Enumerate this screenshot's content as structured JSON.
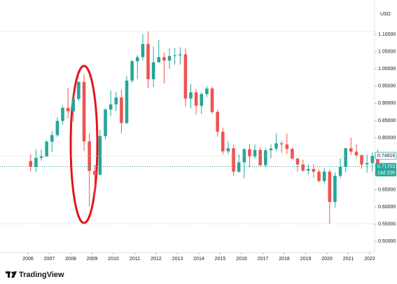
{
  "chart_data": {
    "type": "candlestick",
    "currency": "USD",
    "branding": "TradingView",
    "x": [
      2006.125,
      2006.375,
      2006.625,
      2006.875,
      2007.125,
      2007.375,
      2007.625,
      2007.875,
      2008.125,
      2008.375,
      2008.625,
      2008.875,
      2009.125,
      2009.375,
      2009.625,
      2009.875,
      2010.125,
      2010.375,
      2010.625,
      2010.875,
      2011.125,
      2011.375,
      2011.625,
      2011.875,
      2012.125,
      2012.375,
      2012.625,
      2012.875,
      2013.125,
      2013.375,
      2013.625,
      2013.875,
      2014.125,
      2014.375,
      2014.625,
      2014.875,
      2015.125,
      2015.375,
      2015.625,
      2015.875,
      2016.125,
      2016.375,
      2016.625,
      2016.875,
      2017.125,
      2017.375,
      2017.625,
      2017.875,
      2018.125,
      2018.375,
      2018.625,
      2018.875,
      2019.125,
      2019.375,
      2019.625,
      2019.875,
      2020.125,
      2020.375,
      2020.625,
      2020.875,
      2021.125,
      2021.375,
      2021.625,
      2021.875,
      2022.125,
      2022.375
    ],
    "open": [
      0.733,
      0.716,
      0.742,
      0.746,
      0.789,
      0.808,
      0.849,
      0.887,
      0.877,
      0.913,
      0.962,
      0.79,
      0.704,
      0.693,
      0.805,
      0.882,
      0.897,
      0.917,
      0.843,
      0.966,
      1.022,
      1.034,
      1.072,
      0.97,
      1.019,
      1.034,
      1.024,
      1.037,
      1.039,
      1.042,
      0.914,
      0.932,
      0.893,
      0.927,
      0.943,
      0.875,
      0.818,
      0.761,
      0.77,
      0.702,
      0.729,
      0.767,
      0.746,
      0.765,
      0.721,
      0.764,
      0.769,
      0.784,
      0.781,
      0.768,
      0.74,
      0.723,
      0.705,
      0.71,
      0.702,
      0.675,
      0.702,
      0.614,
      0.69,
      0.716,
      0.77,
      0.76,
      0.75,
      0.723,
      0.727,
      0.748
    ],
    "high": [
      0.752,
      0.767,
      0.766,
      0.793,
      0.819,
      0.86,
      0.893,
      0.944,
      0.93,
      0.965,
      0.984,
      0.814,
      0.722,
      0.823,
      0.886,
      0.937,
      0.933,
      0.939,
      0.979,
      1.026,
      1.04,
      1.101,
      1.108,
      1.064,
      1.084,
      1.047,
      1.06,
      1.061,
      1.062,
      1.06,
      0.956,
      0.941,
      0.932,
      0.95,
      0.948,
      0.882,
      0.83,
      0.79,
      0.78,
      0.752,
      0.77,
      0.783,
      0.781,
      0.773,
      0.77,
      0.781,
      0.813,
      0.791,
      0.812,
      0.772,
      0.742,
      0.737,
      0.723,
      0.724,
      0.709,
      0.712,
      0.708,
      0.7,
      0.741,
      0.771,
      0.801,
      0.782,
      0.751,
      0.751,
      0.758,
      0.766
    ],
    "low": [
      0.703,
      0.702,
      0.734,
      0.745,
      0.76,
      0.803,
      0.838,
      0.856,
      0.847,
      0.907,
      0.762,
      0.601,
      0.626,
      0.692,
      0.794,
      0.863,
      0.877,
      0.814,
      0.84,
      0.96,
      0.97,
      1.024,
      0.944,
      0.947,
      1.018,
      0.958,
      1.0,
      1.013,
      1.012,
      0.891,
      0.886,
      0.868,
      0.869,
      0.918,
      0.87,
      0.803,
      0.752,
      0.753,
      0.69,
      0.699,
      0.683,
      0.715,
      0.74,
      0.718,
      0.716,
      0.741,
      0.762,
      0.756,
      0.753,
      0.737,
      0.702,
      0.702,
      0.693,
      0.684,
      0.671,
      0.668,
      0.551,
      0.598,
      0.683,
      0.7,
      0.751,
      0.743,
      0.711,
      0.699,
      0.703,
      0.707
    ],
    "close": [
      0.716,
      0.742,
      0.746,
      0.789,
      0.808,
      0.849,
      0.887,
      0.877,
      0.913,
      0.962,
      0.79,
      0.704,
      0.693,
      0.805,
      0.882,
      0.897,
      0.917,
      0.843,
      0.966,
      1.022,
      1.034,
      1.072,
      0.97,
      1.019,
      1.034,
      1.024,
      1.037,
      1.039,
      1.042,
      0.914,
      0.932,
      0.893,
      0.927,
      0.943,
      0.875,
      0.818,
      0.761,
      0.77,
      0.702,
      0.729,
      0.767,
      0.746,
      0.765,
      0.721,
      0.764,
      0.769,
      0.784,
      0.781,
      0.768,
      0.74,
      0.723,
      0.705,
      0.71,
      0.702,
      0.675,
      0.702,
      0.614,
      0.69,
      0.716,
      0.77,
      0.76,
      0.75,
      0.723,
      0.727,
      0.748,
      0.717
    ],
    "up_color": "#26a69a",
    "down_color": "#ef5350",
    "xlim": [
      2004.69,
      2022.23
    ],
    "xticks": [
      2006,
      2007,
      2008,
      2009,
      2010,
      2011,
      2012,
      2013,
      2014,
      2015,
      2016,
      2017,
      2018,
      2019,
      2020,
      2021,
      2022
    ],
    "ylim": [
      0.468,
      1.169
    ],
    "yticks": [
      {
        "value": 0.5,
        "label": "0.50000"
      },
      {
        "value": 0.55,
        "label": "0.55000"
      },
      {
        "value": 0.6,
        "label": "0.60000"
      },
      {
        "value": 0.65,
        "label": "0.65000"
      },
      {
        "value": 0.7,
        "label": "0.70000"
      },
      {
        "value": 0.75,
        "label": "0.75000"
      },
      {
        "value": 0.8,
        "label": "0.80000"
      },
      {
        "value": 0.85,
        "label": "0.85000"
      },
      {
        "value": 0.9,
        "label": "0.90000"
      },
      {
        "value": 0.95,
        "label": "0.95000"
      },
      {
        "value": 1.0,
        "label": "1.00000"
      },
      {
        "value": 1.05,
        "label": "1.05000"
      },
      {
        "value": 1.1,
        "label": "1.10000"
      }
    ],
    "prev_price": 0.74816,
    "last_price": {
      "value": 0.71703,
      "label": "0.71703"
    },
    "countdown": "14d 20h",
    "grid": false
  }
}
